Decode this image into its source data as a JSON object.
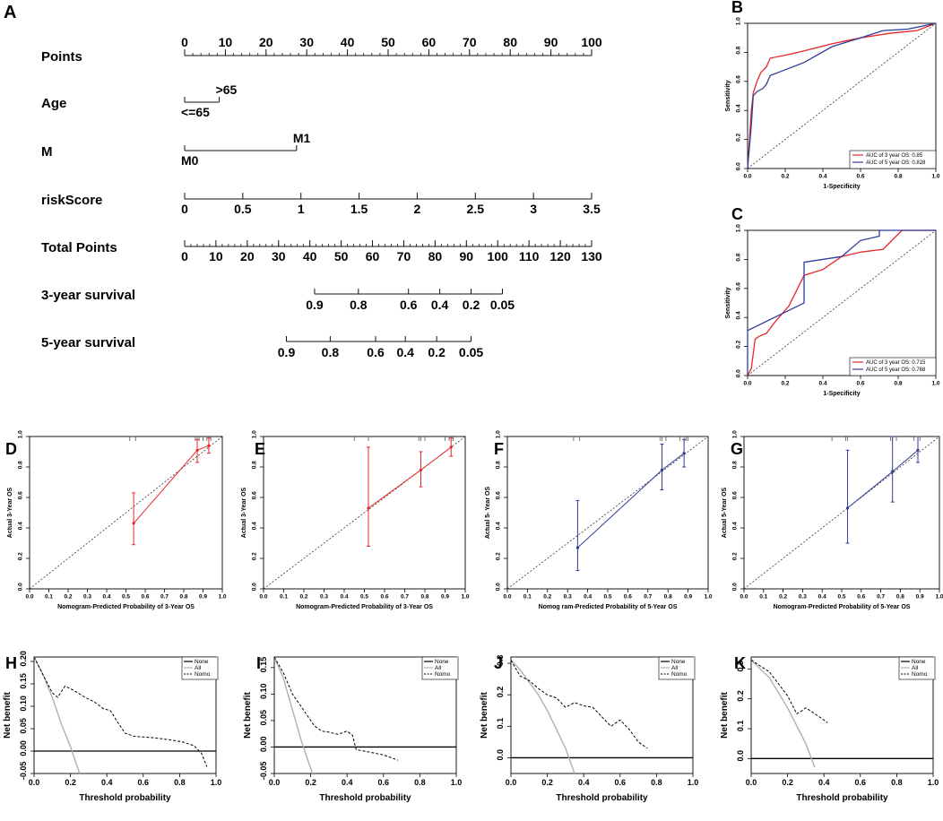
{
  "nomogram": {
    "panel_letter": "A",
    "rows": [
      {
        "label": "Points",
        "type": "scale",
        "min": 0,
        "max": 100,
        "ticks": [
          "0",
          "10",
          "20",
          "30",
          "40",
          "50",
          "60",
          "70",
          "80",
          "90",
          "100"
        ],
        "tick_values": [
          0,
          10,
          20,
          30,
          40,
          50,
          60,
          70,
          80,
          90,
          100
        ],
        "minor_step": 2
      },
      {
        "label": "Age",
        "type": "categorical",
        "levels": [
          {
            "text": ">65",
            "points": 8.5,
            "side": "top"
          },
          {
            "text": "<=65",
            "points": 0,
            "side": "bottom"
          }
        ]
      },
      {
        "label": "M",
        "type": "categorical",
        "levels": [
          {
            "text": "M1",
            "points": 27.5,
            "side": "top"
          },
          {
            "text": "M0",
            "points": 0,
            "side": "bottom"
          }
        ]
      },
      {
        "label": "riskScore",
        "type": "scale",
        "min": 0,
        "max": 3.5,
        "ticks": [
          "0",
          "0.5",
          "1",
          "1.5",
          "2",
          "2.5",
          "3",
          "3.5"
        ],
        "tick_values": [
          0,
          0.5,
          1,
          1.5,
          2,
          2.5,
          3,
          3.5
        ],
        "minor_step": 0
      },
      {
        "label": "Total Points",
        "type": "scale",
        "min": 0,
        "max": 130,
        "ticks": [
          "0",
          "10",
          "20",
          "30",
          "40",
          "50",
          "60",
          "70",
          "80",
          "90",
          "100",
          "110",
          "120",
          "130"
        ],
        "tick_values": [
          0,
          10,
          20,
          30,
          40,
          50,
          60,
          70,
          80,
          90,
          100,
          110,
          120,
          130
        ],
        "minor_step": 2
      },
      {
        "label": "3-year survival",
        "type": "survival",
        "ticks": [
          "0.9",
          "0.8",
          "0.6",
          "0.4",
          "0.2",
          "0.05"
        ],
        "total_points": [
          41.5,
          55.5,
          71.5,
          81.5,
          91.5,
          101.5
        ]
      },
      {
        "label": "5-year survival",
        "type": "survival",
        "ticks": [
          "0.9",
          "0.8",
          "0.6",
          "0.4",
          "0.2",
          "0.05"
        ],
        "total_points": [
          32.5,
          46.5,
          61,
          70.5,
          80.5,
          91.5
        ]
      }
    ]
  },
  "colors": {
    "red": "#e8262b",
    "blue": "#2e3d98",
    "gray": "#b0b0b0",
    "black": "#111111"
  },
  "chart_data": [
    {
      "type": "line",
      "panel": "B",
      "xlabel": "1-Specificity",
      "ylabel": "Sensitivity",
      "xlim": [
        0,
        1
      ],
      "ylim": [
        0,
        1
      ],
      "xticks": [
        "0.0",
        "0.2",
        "0.4",
        "0.6",
        "0.8",
        "1.0"
      ],
      "yticks": [
        "0.0",
        "0.2",
        "0.4",
        "0.6",
        "0.8",
        "1.0"
      ],
      "legend_position": "bottom-right",
      "series": [
        {
          "name": "AUC of 3 year OS:  0.85",
          "color": "red",
          "x": [
            0,
            0.01,
            0.02,
            0.03,
            0.05,
            0.07,
            0.1,
            0.12,
            0.2,
            0.3,
            0.45,
            0.6,
            0.75,
            0.9,
            1.0
          ],
          "y": [
            0,
            0.2,
            0.4,
            0.52,
            0.6,
            0.66,
            0.7,
            0.76,
            0.78,
            0.81,
            0.86,
            0.9,
            0.93,
            0.95,
            1.0
          ]
        },
        {
          "name": "AUC of 5 year OS:  0.828",
          "color": "blue",
          "x": [
            0,
            0.01,
            0.02,
            0.03,
            0.05,
            0.08,
            0.1,
            0.12,
            0.2,
            0.3,
            0.45,
            0.6,
            0.72,
            0.85,
            1.0
          ],
          "y": [
            0,
            0.15,
            0.3,
            0.5,
            0.53,
            0.55,
            0.58,
            0.64,
            0.68,
            0.73,
            0.84,
            0.9,
            0.95,
            0.96,
            1.0
          ]
        }
      ]
    },
    {
      "type": "line",
      "panel": "C",
      "xlabel": "1-Specificity",
      "ylabel": "Sensitivity",
      "xlim": [
        0,
        1
      ],
      "ylim": [
        0,
        1
      ],
      "xticks": [
        "0.0",
        "0.2",
        "0.4",
        "0.6",
        "0.8",
        "1.0"
      ],
      "yticks": [
        "0.0",
        "0.2",
        "0.4",
        "0.6",
        "0.8",
        "1.0"
      ],
      "legend_position": "bottom-right",
      "series": [
        {
          "name": "AUC of 3 year OS:  0.715",
          "color": "red",
          "x": [
            0,
            0.02,
            0.04,
            0.06,
            0.1,
            0.14,
            0.22,
            0.3,
            0.4,
            0.5,
            0.6,
            0.72,
            0.82,
            1.0
          ],
          "y": [
            0,
            0.05,
            0.25,
            0.27,
            0.29,
            0.36,
            0.48,
            0.69,
            0.73,
            0.82,
            0.85,
            0.87,
            1.0,
            1.0
          ],
          "step": false
        },
        {
          "name": "AUC of 5 year OS:  0.768",
          "color": "blue",
          "x": [
            0,
            0,
            0.3,
            0.3,
            0.5,
            0.6,
            0.7,
            0.7,
            1.0
          ],
          "y": [
            0,
            0.31,
            0.5,
            0.78,
            0.82,
            0.93,
            0.96,
            1.0,
            1.0
          ],
          "step": false
        }
      ]
    },
    {
      "type": "scatter",
      "panel": "D",
      "xlabel": "Nomogram-Predicted Probability of 3-Year OS",
      "ylabel": "Actual 3-Year OS",
      "xlim": [
        0,
        1
      ],
      "ylim": [
        0,
        1
      ],
      "xticks": [
        "0.0",
        "0.1",
        "0.2",
        "0.3",
        "0.4",
        "0.5",
        "0.6",
        "0.7",
        "0.8",
        "0.9",
        "1.0"
      ],
      "yticks": [
        "0.0",
        "0.2",
        "0.4",
        "0.6",
        "0.8",
        "1.0"
      ],
      "color": "red",
      "points": [
        {
          "x": 0.54,
          "y": 0.43,
          "lo": 0.29,
          "hi": 0.63
        },
        {
          "x": 0.87,
          "y": 0.91,
          "lo": 0.83,
          "hi": 0.98
        },
        {
          "x": 0.93,
          "y": 0.94,
          "lo": 0.89,
          "hi": 0.99
        }
      ],
      "rug": [
        0.52,
        0.55,
        0.86,
        0.87,
        0.88,
        0.9,
        0.92,
        0.93,
        0.94
      ]
    },
    {
      "type": "scatter",
      "panel": "E",
      "xlabel": "Nomogram-Predicted Probability of 3-Year OS",
      "ylabel": "Actual 3-Year OS",
      "xlim": [
        0,
        1
      ],
      "ylim": [
        0,
        1
      ],
      "xticks": [
        "0.0",
        "0.1",
        "0.2",
        "0.3",
        "0.4",
        "0.5",
        "0.6",
        "0.7",
        "0.8",
        "0.9",
        "1.0"
      ],
      "yticks": [
        "0.0",
        "0.2",
        "0.4",
        "0.6",
        "0.8",
        "1.0"
      ],
      "color": "red",
      "points": [
        {
          "x": 0.52,
          "y": 0.53,
          "lo": 0.28,
          "hi": 0.93
        },
        {
          "x": 0.78,
          "y": 0.78,
          "lo": 0.67,
          "hi": 0.9
        },
        {
          "x": 0.93,
          "y": 0.93,
          "lo": 0.87,
          "hi": 0.99
        }
      ],
      "rug": [
        0.45,
        0.52,
        0.77,
        0.78,
        0.8,
        0.9,
        0.92,
        0.93,
        0.94
      ]
    },
    {
      "type": "scatter",
      "panel": "F",
      "xlabel": "Nomog  ram-Predicted Probability of 5-Year OS",
      "ylabel": "Actual 5-  Year OS",
      "xlim": [
        0,
        1
      ],
      "ylim": [
        0,
        1
      ],
      "xticks": [
        "0.0",
        "0.1",
        "0.2",
        "0.3",
        "0.4",
        "0.5",
        "0.6",
        "0.7",
        "0.8",
        "0.9",
        "1.0"
      ],
      "yticks": [
        "0.0",
        "0.2",
        "0.4",
        "0.6",
        "0.8",
        "1.0"
      ],
      "color": "blue",
      "points": [
        {
          "x": 0.35,
          "y": 0.27,
          "lo": 0.12,
          "hi": 0.58
        },
        {
          "x": 0.77,
          "y": 0.78,
          "lo": 0.65,
          "hi": 0.95
        },
        {
          "x": 0.88,
          "y": 0.89,
          "lo": 0.8,
          "hi": 0.98
        }
      ],
      "rug": [
        0.33,
        0.36,
        0.76,
        0.77,
        0.79,
        0.86,
        0.88,
        0.89,
        0.9
      ]
    },
    {
      "type": "scatter",
      "panel": "G",
      "xlabel": "Nomogram-Predicted Probability of 5-Year OS",
      "ylabel": "Actual 5-Year OS",
      "xlim": [
        0,
        1
      ],
      "ylim": [
        0,
        1
      ],
      "xticks": [
        "0.0",
        "0.1",
        "0.2",
        "0.3",
        "0.4",
        "0.5",
        "0.6",
        "0.7",
        "0.8",
        "0.9",
        "1.0"
      ],
      "yticks": [
        "0.0",
        "0.2",
        "0.4",
        "0.6",
        "0.8",
        "1.0"
      ],
      "color": "blue",
      "points": [
        {
          "x": 0.53,
          "y": 0.53,
          "lo": 0.3,
          "hi": 0.91
        },
        {
          "x": 0.76,
          "y": 0.77,
          "lo": 0.57,
          "hi": 1.0
        },
        {
          "x": 0.89,
          "y": 0.91,
          "lo": 0.83,
          "hi": 1.0
        }
      ],
      "rug": [
        0.45,
        0.52,
        0.53,
        0.75,
        0.76,
        0.78,
        0.87,
        0.89,
        0.9
      ]
    },
    {
      "type": "line",
      "panel": "H",
      "xlabel": "Threshold probability",
      "ylabel": "Net benefit",
      "xlim": [
        0,
        1
      ],
      "ylim": [
        -0.05,
        0.21
      ],
      "xticks": [
        "0.0",
        "0.2",
        "0.4",
        "0.6",
        "0.8",
        "1.0"
      ],
      "yticks": [
        "-0.05",
        "0.00",
        "0.05",
        "0.10",
        "0.15",
        "0.20"
      ],
      "legend": [
        "None",
        "All",
        "Nomo"
      ],
      "none": 0,
      "all": {
        "x": [
          0,
          0.05,
          0.1,
          0.15,
          0.2,
          0.25
        ],
        "y": [
          0.21,
          0.17,
          0.12,
          0.06,
          0.01,
          -0.05
        ]
      },
      "nomogram": {
        "x": [
          0,
          0.05,
          0.1,
          0.13,
          0.17,
          0.22,
          0.28,
          0.33,
          0.38,
          0.42,
          0.45,
          0.5,
          0.55,
          0.65,
          0.75,
          0.82,
          0.88,
          0.92,
          0.95
        ],
        "y": [
          0.21,
          0.17,
          0.13,
          0.12,
          0.145,
          0.135,
          0.12,
          0.11,
          0.095,
          0.09,
          0.07,
          0.04,
          0.033,
          0.03,
          0.025,
          0.02,
          0.012,
          -0.005,
          -0.035
        ]
      }
    },
    {
      "type": "line",
      "panel": "I",
      "xlabel": "Threshold probability",
      "ylabel": "Net benefit",
      "xlim": [
        0,
        1
      ],
      "ylim": [
        -0.05,
        0.17
      ],
      "xticks": [
        "0.0",
        "0.2",
        "0.4",
        "0.6",
        "0.8",
        "1.0"
      ],
      "yticks": [
        "-0.05",
        "0.00",
        "0.05",
        "0.10",
        "0.15"
      ],
      "legend": [
        "None",
        "All",
        "Nomo"
      ],
      "none": 0,
      "all": {
        "x": [
          0,
          0.05,
          0.1,
          0.15,
          0.2,
          0.23
        ],
        "y": [
          0.17,
          0.13,
          0.07,
          0.01,
          -0.04,
          -0.07
        ]
      },
      "nomogram": {
        "x": [
          0,
          0.05,
          0.1,
          0.13,
          0.17,
          0.22,
          0.26,
          0.3,
          0.35,
          0.4,
          0.43,
          0.45,
          0.5,
          0.6,
          0.68
        ],
        "y": [
          0.17,
          0.14,
          0.1,
          0.085,
          0.065,
          0.04,
          0.03,
          0.028,
          0.024,
          0.03,
          0.022,
          -0.005,
          -0.008,
          -0.015,
          -0.025
        ]
      }
    },
    {
      "type": "line",
      "panel": "J",
      "xlabel": "Threshold probability",
      "ylabel": "Net benefit",
      "xlim": [
        0,
        1
      ],
      "ylim": [
        -0.05,
        0.32
      ],
      "xticks": [
        "0.0",
        "0.2",
        "0.4",
        "0.6",
        "0.8",
        "1.0"
      ],
      "yticks": [
        "0.0",
        "0.1",
        "0.2",
        "0.3"
      ],
      "legend": [
        "None",
        "All",
        "Nomo"
      ],
      "none": 0,
      "all": {
        "x": [
          0,
          0.05,
          0.1,
          0.15,
          0.2,
          0.25,
          0.3,
          0.35
        ],
        "y": [
          0.31,
          0.28,
          0.24,
          0.2,
          0.15,
          0.09,
          0.03,
          -0.05
        ]
      },
      "nomogram": {
        "x": [
          0,
          0.05,
          0.1,
          0.15,
          0.2,
          0.25,
          0.3,
          0.35,
          0.4,
          0.45,
          0.5,
          0.55,
          0.6,
          0.65,
          0.7,
          0.75
        ],
        "y": [
          0.31,
          0.26,
          0.245,
          0.22,
          0.2,
          0.19,
          0.16,
          0.175,
          0.165,
          0.16,
          0.13,
          0.1,
          0.12,
          0.09,
          0.05,
          0.03
        ]
      }
    },
    {
      "type": "line",
      "panel": "K",
      "xlabel": "Threshold probability",
      "ylabel": "Net benefit",
      "xlim": [
        0,
        1
      ],
      "ylim": [
        -0.05,
        0.34
      ],
      "xticks": [
        "0.0",
        "0.2",
        "0.4",
        "0.6",
        "0.8",
        "1.0"
      ],
      "yticks": [
        "0.0",
        "0.1",
        "0.2",
        "0.3"
      ],
      "legend": [
        "None",
        "All",
        "Nomo"
      ],
      "none": 0,
      "all": {
        "x": [
          0,
          0.05,
          0.1,
          0.15,
          0.2,
          0.25,
          0.3,
          0.35
        ],
        "y": [
          0.33,
          0.3,
          0.27,
          0.22,
          0.17,
          0.11,
          0.05,
          -0.03
        ]
      },
      "nomogram": {
        "x": [
          0,
          0.05,
          0.1,
          0.15,
          0.2,
          0.25,
          0.28,
          0.3,
          0.35,
          0.42
        ],
        "y": [
          0.33,
          0.31,
          0.29,
          0.25,
          0.21,
          0.15,
          0.16,
          0.17,
          0.15,
          0.12
        ]
      }
    }
  ]
}
